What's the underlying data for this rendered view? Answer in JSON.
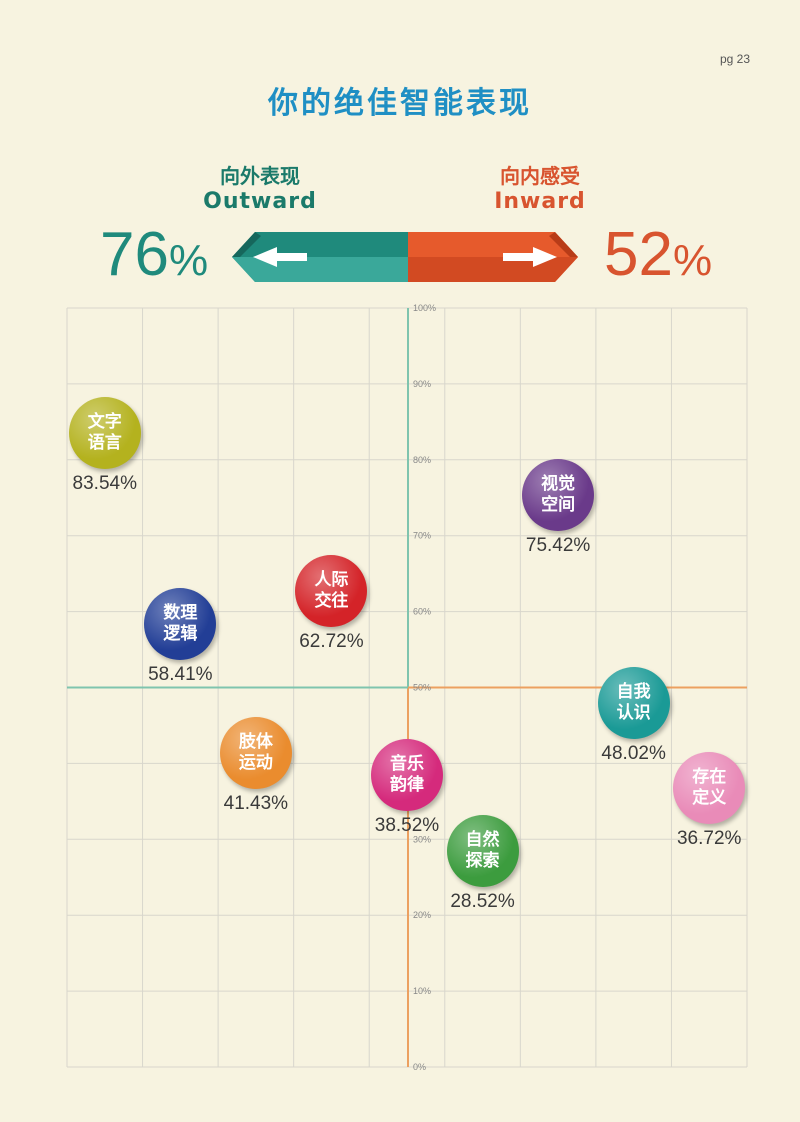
{
  "page_number": "pg 23",
  "title": "你的绝佳智能表现",
  "outward": {
    "label_zh": "向外表现",
    "label_en": "Outward",
    "value": "76",
    "unit": "%",
    "color": "#1f8a7c"
  },
  "inward": {
    "label_zh": "向内感受",
    "label_en": "Inward",
    "value": "52",
    "unit": "%",
    "color": "#d8542f"
  },
  "chart_data": {
    "type": "scatter",
    "title": "你的绝佳智能表现",
    "xlabel": "",
    "ylabel": "",
    "ylim": [
      0,
      100
    ],
    "y_ticks": [
      "0%",
      "10%",
      "20%",
      "30%",
      "40%",
      "50%",
      "60%",
      "70%",
      "80%",
      "90%",
      "100%"
    ],
    "grid": true,
    "points": [
      {
        "line1": "文字",
        "line2": "语言",
        "value": 83.54,
        "value_label": "83.54%",
        "column": 0.5,
        "color": "#b4b21e"
      },
      {
        "line1": "数理",
        "line2": "逻辑",
        "value": 58.41,
        "value_label": "58.41%",
        "column": 1.5,
        "color": "#223e96"
      },
      {
        "line1": "肢体",
        "line2": "运动",
        "value": 41.43,
        "value_label": "41.43%",
        "column": 2.5,
        "color": "#ea8c2e"
      },
      {
        "line1": "人际",
        "line2": "交往",
        "value": 62.72,
        "value_label": "62.72%",
        "column": 3.5,
        "color": "#d42328"
      },
      {
        "line1": "音乐",
        "line2": "韵律",
        "value": 38.52,
        "value_label": "38.52%",
        "column": 4.5,
        "color": "#d52a7c"
      },
      {
        "line1": "自然",
        "line2": "探索",
        "value": 28.52,
        "value_label": "28.52%",
        "column": 5.5,
        "color": "#3c9c3e"
      },
      {
        "line1": "视觉",
        "line2": "空间",
        "value": 75.42,
        "value_label": "75.42%",
        "column": 6.5,
        "color": "#6a3a8a"
      },
      {
        "line1": "自我",
        "line2": "认识",
        "value": 48.02,
        "value_label": "48.02%",
        "column": 7.5,
        "color": "#1a9a96"
      },
      {
        "line1": "存在",
        "line2": "定义",
        "value": 36.72,
        "value_label": "36.72%",
        "column": 8.5,
        "color": "#e98bb8"
      }
    ]
  }
}
